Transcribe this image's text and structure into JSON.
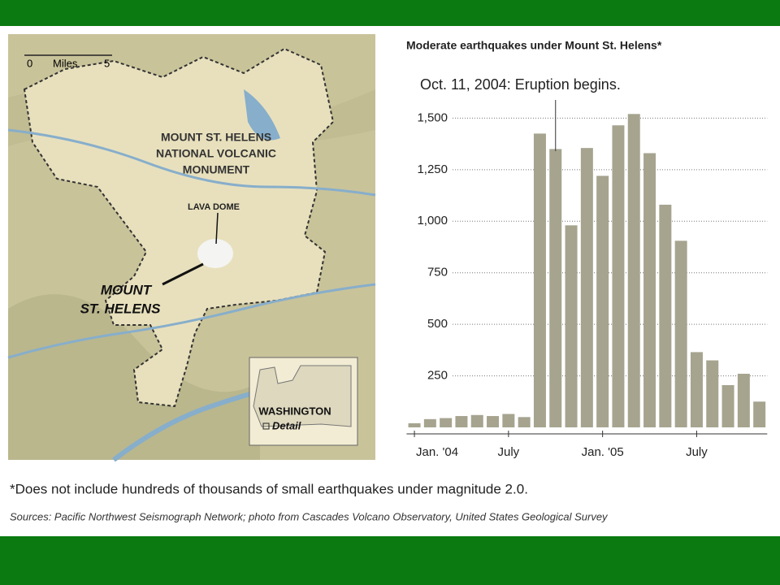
{
  "chart_data": {
    "type": "bar",
    "title": "Moderate earthquakes under Mount St. Helens*",
    "annotation": "Oct. 11, 2004: Eruption begins.",
    "categories": [
      "Jan. '04",
      null,
      null,
      null,
      null,
      null,
      "July",
      null,
      null,
      null,
      null,
      null,
      "Jan. '05",
      null,
      null,
      null,
      null,
      null,
      "July",
      null,
      null,
      null,
      null
    ],
    "values": [
      20,
      40,
      45,
      55,
      60,
      55,
      65,
      50,
      1425,
      1350,
      980,
      1355,
      1220,
      1465,
      1520,
      1330,
      1080,
      905,
      365,
      325,
      205,
      260,
      125
    ],
    "color": "#a6a48f",
    "ylim": [
      0,
      1600
    ],
    "yticks": [
      250,
      500,
      750,
      {
        "value": 1000,
        "label": "1,000"
      },
      {
        "value": 1250,
        "label": "1,250"
      },
      {
        "value": 1500,
        "label": "1,500"
      }
    ],
    "grid": true
  },
  "map": {
    "scale_start": "0",
    "scale_unit": "Miles",
    "scale_end": "5",
    "monument": [
      "MOUNT ST. HELENS",
      "NATIONAL VOLCANIC",
      "MONUMENT"
    ],
    "dome": "LAVA DOME",
    "mountain": [
      "MOUNT",
      "ST. HELENS"
    ],
    "state": "WASHINGTON",
    "detail": "Detail"
  },
  "footnote": "*Does not include hundreds of thousands of small earthquakes under magnitude 2.0.",
  "sources": "Sources: Pacific Northwest Seismograph Network; photo from Cascades Volcano Observatory, United States Geological Survey"
}
